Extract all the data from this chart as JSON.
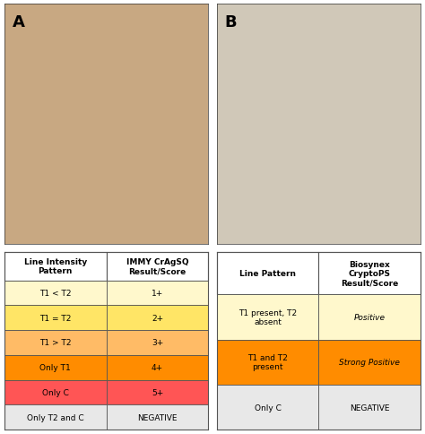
{
  "fig_width": 4.74,
  "fig_height": 4.85,
  "dpi": 100,
  "label_A": "A",
  "label_B": "B",
  "table1_headers": [
    "Line Intensity\nPattern",
    "IMMY CrAgSQ\nResult/Score"
  ],
  "table1_rows": [
    [
      "T1 < T2",
      "1+"
    ],
    [
      "T1 = T2",
      "2+"
    ],
    [
      "T1 > T2",
      "3+"
    ],
    [
      "Only T1",
      "4+"
    ],
    [
      "Only C",
      "5+"
    ],
    [
      "Only T2 and C",
      "NEGATIVE"
    ]
  ],
  "table1_row_colors": [
    [
      "#FFF8CC",
      "#FFF8CC"
    ],
    [
      "#FFE566",
      "#FFE566"
    ],
    [
      "#FFBB66",
      "#FFBB66"
    ],
    [
      "#FF8C00",
      "#FF8C00"
    ],
    [
      "#FF5555",
      "#FF5555"
    ],
    [
      "#E8E8E8",
      "#E8E8E8"
    ]
  ],
  "table2_headers": [
    "Line Pattern",
    "Biosynex\nCryptoPS\nResult/Score"
  ],
  "table2_rows": [
    [
      "T1 present, T2\nabsent",
      "Positive"
    ],
    [
      "T1 and T2\npresent",
      "Strong Positive"
    ],
    [
      "Only C",
      "NEGATIVE"
    ]
  ],
  "table2_row_colors": [
    [
      "#FFF8CC",
      "#FFF8CC"
    ],
    [
      "#FF8C00",
      "#FF8C00"
    ],
    [
      "#E8E8E8",
      "#E8E8E8"
    ]
  ],
  "table2_italic_rows": [
    0,
    1
  ],
  "photo_A_color": "#C8A882",
  "photo_B_color": "#D0C8B8",
  "border_color": "#555555",
  "header_bg": "#FFFFFF"
}
